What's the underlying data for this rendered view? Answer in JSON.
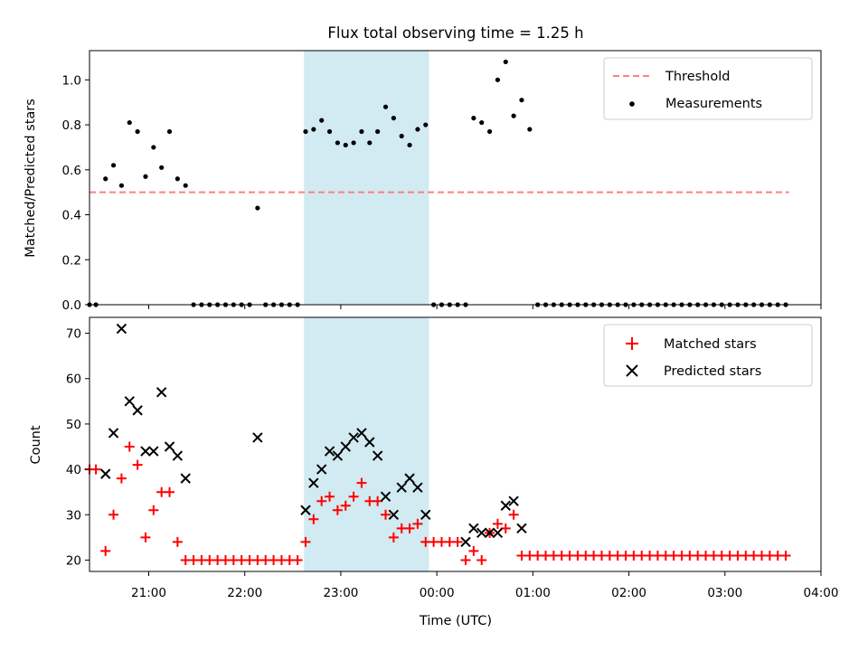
{
  "title": "Flux total observing time = 1.25 h",
  "colors": {
    "measurement": "#000000",
    "threshold": "#ff7f7f",
    "matched": "#ff0000",
    "predicted": "#000000",
    "highlight": "#add8e6"
  },
  "chart_data": [
    {
      "type": "scatter",
      "ylabel": "Matched/Predicted stars",
      "xlabel": "",
      "xlim": [
        "20:23",
        "04:00"
      ],
      "ylim": [
        0,
        1.13
      ],
      "yticks": [
        "0.0",
        "0.2",
        "0.4",
        "0.6",
        "0.8",
        "1.0"
      ],
      "highlight_span": [
        "22:37",
        "23:55"
      ],
      "legend": {
        "placement": "top-right",
        "entries": [
          "Threshold",
          "Measurements"
        ]
      },
      "threshold": {
        "name": "Threshold",
        "value": 0.5,
        "x_range": [
          "20:23",
          "03:40"
        ]
      },
      "series": [
        {
          "name": "Measurements",
          "x": [
            "20:23",
            "20:27",
            "20:33",
            "20:38",
            "20:43",
            "20:48",
            "20:53",
            "20:58",
            "21:03",
            "21:08",
            "21:13",
            "21:18",
            "21:23",
            "21:28",
            "21:33",
            "21:38",
            "21:43",
            "21:48",
            "21:53",
            "21:58",
            "22:03",
            "22:08",
            "22:13",
            "22:18",
            "22:23",
            "22:28",
            "22:33",
            "22:38",
            "22:43",
            "22:48",
            "22:53",
            "22:58",
            "23:03",
            "23:08",
            "23:13",
            "23:18",
            "23:23",
            "23:28",
            "23:33",
            "23:38",
            "23:43",
            "23:48",
            "23:53",
            "23:58",
            "00:03",
            "00:08",
            "00:13",
            "00:18",
            "00:23",
            "00:28",
            "00:33",
            "00:38",
            "00:43",
            "00:48",
            "00:53",
            "00:58",
            "01:03",
            "01:08",
            "01:13",
            "01:18",
            "01:23",
            "01:28",
            "01:33",
            "01:38",
            "01:43",
            "01:48",
            "01:53",
            "01:58",
            "02:03",
            "02:08",
            "02:13",
            "02:18",
            "02:23",
            "02:28",
            "02:33",
            "02:38",
            "02:43",
            "02:48",
            "02:53",
            "02:58",
            "03:03",
            "03:08",
            "03:13",
            "03:18",
            "03:23",
            "03:28",
            "03:33",
            "03:38"
          ],
          "y": [
            0,
            0,
            0.56,
            0.62,
            0.53,
            0.81,
            0.77,
            0.57,
            0.7,
            0.61,
            0.77,
            0.56,
            0.53,
            0,
            0,
            0,
            0,
            0,
            0,
            0,
            0,
            0.43,
            0,
            0,
            0,
            0,
            0,
            0.77,
            0.78,
            0.82,
            0.77,
            0.72,
            0.71,
            0.72,
            0.77,
            0.72,
            0.77,
            0.88,
            0.83,
            0.75,
            0.71,
            0.78,
            0.8,
            0,
            0,
            0,
            0,
            0,
            0.83,
            0.81,
            0.77,
            1.0,
            1.08,
            0.84,
            0.91,
            0.78,
            0,
            0,
            0,
            0,
            0,
            0,
            0,
            0,
            0,
            0,
            0,
            0,
            0,
            0,
            0,
            0,
            0,
            0,
            0,
            0,
            0,
            0,
            0,
            0,
            0,
            0,
            0,
            0,
            0,
            0,
            0,
            0
          ]
        }
      ]
    },
    {
      "type": "scatter",
      "ylabel": "Count",
      "xlabel": "Time (UTC)",
      "xlim": [
        "20:23",
        "04:00"
      ],
      "ylim": [
        17.5,
        73.5
      ],
      "yticks": [
        "20",
        "30",
        "40",
        "50",
        "60",
        "70"
      ],
      "xticks": [
        "21:00",
        "22:00",
        "23:00",
        "00:00",
        "01:00",
        "02:00",
        "03:00",
        "04:00"
      ],
      "highlight_span": [
        "22:37",
        "23:55"
      ],
      "legend": {
        "placement": "top-right",
        "entries": [
          "Matched stars",
          "Predicted stars"
        ]
      },
      "series": [
        {
          "name": "Matched stars",
          "x": [
            "20:23",
            "20:27",
            "20:33",
            "20:38",
            "20:43",
            "20:48",
            "20:53",
            "20:58",
            "21:03",
            "21:08",
            "21:13",
            "21:18",
            "21:23",
            "21:28",
            "21:33",
            "21:38",
            "21:43",
            "21:48",
            "21:53",
            "21:58",
            "22:03",
            "22:08",
            "22:13",
            "22:18",
            "22:23",
            "22:28",
            "22:33",
            "22:38",
            "22:43",
            "22:48",
            "22:53",
            "22:58",
            "23:03",
            "23:08",
            "23:13",
            "23:18",
            "23:23",
            "23:28",
            "23:33",
            "23:38",
            "23:43",
            "23:48",
            "23:53",
            "23:58",
            "00:03",
            "00:08",
            "00:13",
            "00:18",
            "00:23",
            "00:28",
            "00:33",
            "00:38",
            "00:43",
            "00:48",
            "00:53",
            "00:58",
            "01:03",
            "01:08",
            "01:13",
            "01:18",
            "01:23",
            "01:28",
            "01:33",
            "01:38",
            "01:43",
            "01:48",
            "01:53",
            "01:58",
            "02:03",
            "02:08",
            "02:13",
            "02:18",
            "02:23",
            "02:28",
            "02:33",
            "02:38",
            "02:43",
            "02:48",
            "02:53",
            "02:58",
            "03:03",
            "03:08",
            "03:13",
            "03:18",
            "03:23",
            "03:28",
            "03:33",
            "03:38"
          ],
          "y": [
            40,
            40,
            22,
            30,
            38,
            45,
            41,
            25,
            31,
            35,
            35,
            24,
            20,
            20,
            20,
            20,
            20,
            20,
            20,
            20,
            20,
            20,
            20,
            20,
            20,
            20,
            20,
            24,
            29,
            33,
            34,
            31,
            32,
            34,
            37,
            33,
            33,
            30,
            25,
            27,
            27,
            28,
            24,
            24,
            24,
            24,
            24,
            20,
            22,
            20,
            26,
            28,
            27,
            30,
            21,
            21,
            21,
            21,
            21,
            21,
            21,
            21,
            21,
            21,
            21,
            21,
            21,
            21,
            21,
            21,
            21,
            21,
            21,
            21,
            21,
            21,
            21,
            21,
            21,
            21,
            21,
            21,
            21,
            21,
            21,
            21,
            21,
            21
          ]
        },
        {
          "name": "Predicted stars",
          "x": [
            "20:33",
            "20:38",
            "20:43",
            "20:48",
            "20:53",
            "20:58",
            "21:03",
            "21:08",
            "21:13",
            "21:18",
            "21:23",
            "22:08",
            "22:38",
            "22:43",
            "22:48",
            "22:53",
            "22:58",
            "23:03",
            "23:08",
            "23:13",
            "23:18",
            "23:23",
            "23:28",
            "23:33",
            "23:38",
            "23:43",
            "23:48",
            "23:53",
            "00:18",
            "00:23",
            "00:28",
            "00:33",
            "00:38",
            "00:43",
            "00:48",
            "00:53"
          ],
          "y": [
            39,
            48,
            71,
            55,
            53,
            44,
            44,
            57,
            45,
            43,
            38,
            47,
            31,
            37,
            40,
            44,
            43,
            45,
            47,
            48,
            46,
            43,
            34,
            30,
            36,
            38,
            36,
            30,
            24,
            27,
            26,
            26,
            26,
            32,
            33,
            27
          ]
        }
      ]
    }
  ]
}
